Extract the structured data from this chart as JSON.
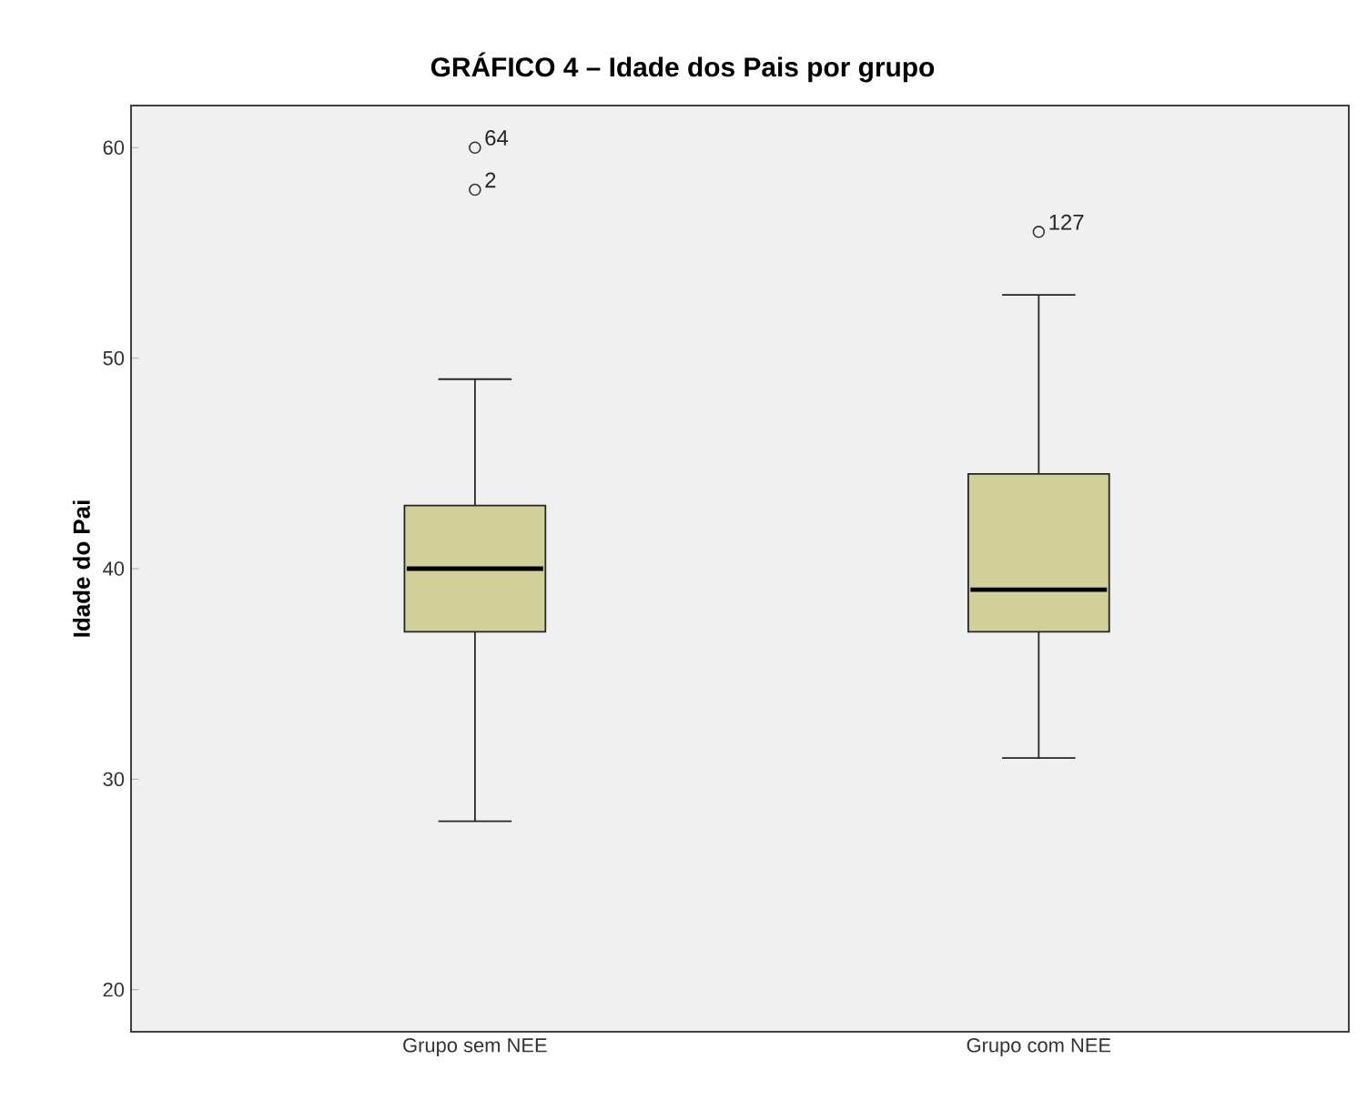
{
  "chart_data": {
    "type": "box",
    "title": "GRÁFICO 4 – Idade dos Pais por grupo",
    "ylabel": "Idade do Pai",
    "categories": [
      "Grupo sem NEE",
      "Grupo com NEE"
    ],
    "boxes": [
      {
        "low": 28,
        "q1": 37,
        "median": 40,
        "q3": 43,
        "high": 49,
        "outliers": [
          60,
          58
        ]
      },
      {
        "low": 31,
        "q1": 37,
        "median": 39,
        "q3": 44.5,
        "high": 53,
        "outliers": [
          56
        ]
      }
    ],
    "color": "#d3cf99",
    "ylim": [
      18,
      62
    ],
    "yticks": [
      20,
      30,
      40,
      50,
      60
    ],
    "grid": false,
    "annotations": [
      "64",
      "2",
      "127"
    ]
  }
}
